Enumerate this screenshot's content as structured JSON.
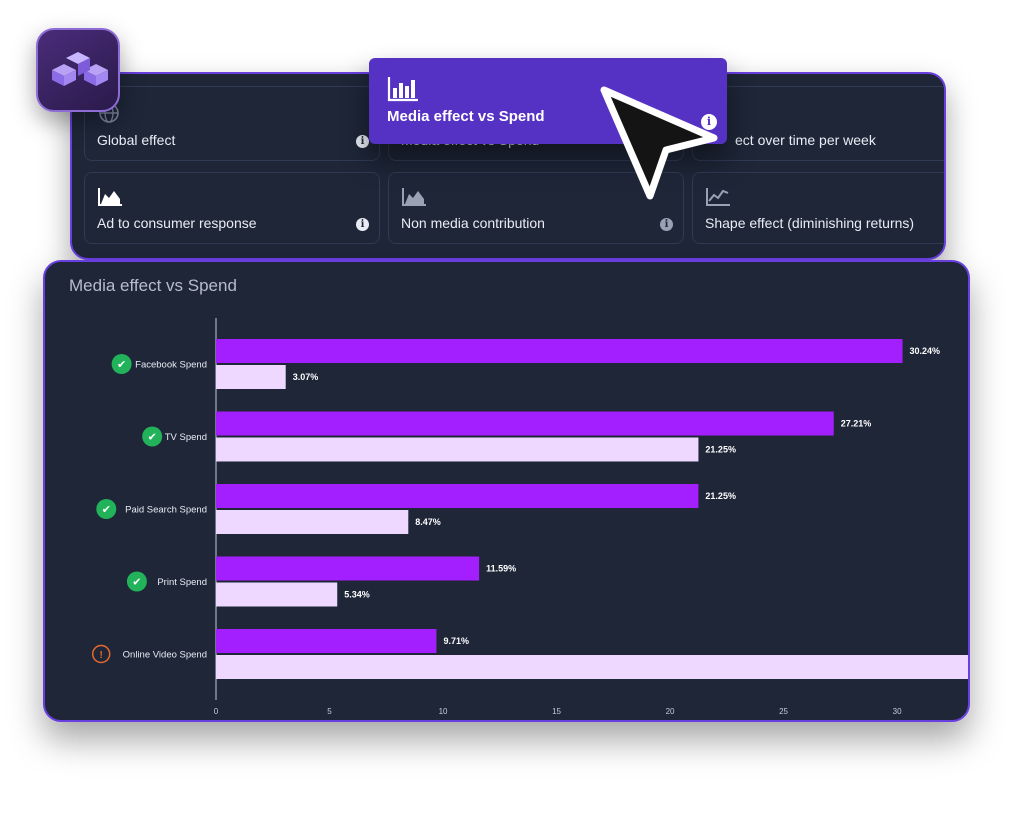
{
  "logo": {
    "icon": "app-logo-icon"
  },
  "top_cards": [
    {
      "label": "Global effect",
      "icon": "globe-icon",
      "info": true
    },
    {
      "label": "Media effect vs Spend",
      "icon": "bar-chart-icon",
      "info": true
    },
    {
      "label": "ect over time per week",
      "icon": "line-chart-icon",
      "info": false
    },
    {
      "label": "Ad to consumer response",
      "icon": "area-chart-icon",
      "info": true
    },
    {
      "label": "Non media contribution",
      "icon": "area-chart-icon",
      "info": true
    },
    {
      "label": "Shape effect (diminishing returns)",
      "icon": "trend-chart-icon",
      "info": false
    }
  ],
  "highlight_card": {
    "label": "Media effect vs Spend",
    "icon": "bar-chart-icon",
    "info_glyph": "i"
  },
  "info_glyph": "i",
  "chart_panel": {
    "title": "Media effect vs Spend"
  },
  "chart_data": {
    "type": "bar",
    "orientation": "horizontal",
    "categories": [
      "Facebook Spend",
      "TV Spend",
      "Paid Search Spend",
      "Print Spend",
      "Online Video Spend"
    ],
    "category_status": [
      "positive",
      "positive",
      "positive",
      "positive",
      "warning"
    ],
    "series": [
      {
        "values": [
          30.24,
          27.21,
          21.25,
          11.59,
          9.71
        ],
        "labels": [
          "30.24%",
          "27.21%",
          "21.25%",
          "11.59%",
          "9.71%"
        ],
        "color": "#a41fff"
      },
      {
        "values": [
          3.07,
          21.25,
          8.47,
          5.34,
          33.5
        ],
        "labels": [
          "3.07%",
          "21.25%",
          "8.47%",
          "5.34%",
          ""
        ],
        "color": "#eed8ff"
      }
    ],
    "xticks": [
      0,
      5,
      10,
      15,
      20,
      25,
      30
    ],
    "xlim": [
      0,
      33.3
    ],
    "grid": false,
    "legend": "none"
  },
  "colors": {
    "accent": "#6a3fe0",
    "panel_bg": "#1e2638",
    "positive": "#21b25a",
    "warning": "#e8692d"
  }
}
